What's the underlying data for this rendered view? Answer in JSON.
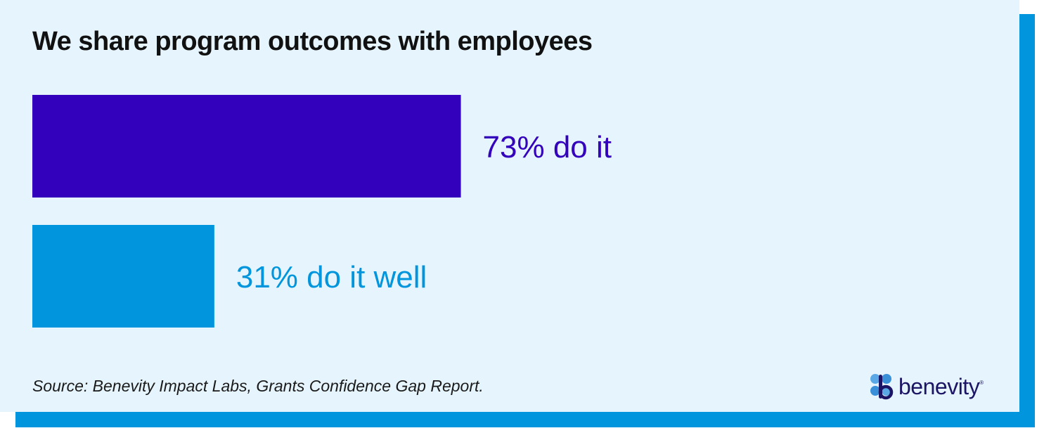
{
  "title": "We share program outcomes with employees",
  "source": "Source: Benevity Impact Labs, Grants Confidence Gap Report.",
  "logo": {
    "text": "benevity",
    "registered": "®",
    "icon": "benevity-logo-icon"
  },
  "colors": {
    "background": "#e6f5fd",
    "accent_shadow": "#0095dc",
    "bar_primary": "#3300bb",
    "bar_secondary": "#0095dc",
    "title": "#111111",
    "logo_text": "#1c1464"
  },
  "chart_data": {
    "type": "bar",
    "orientation": "horizontal",
    "title": "We share program outcomes with employees",
    "xlim": [
      0,
      100
    ],
    "grid": false,
    "legend": "none",
    "categories": [
      "73% do it",
      "31% do it well"
    ],
    "values": [
      73,
      31
    ],
    "colors": [
      "#3300bb",
      "#0095dc"
    ]
  }
}
